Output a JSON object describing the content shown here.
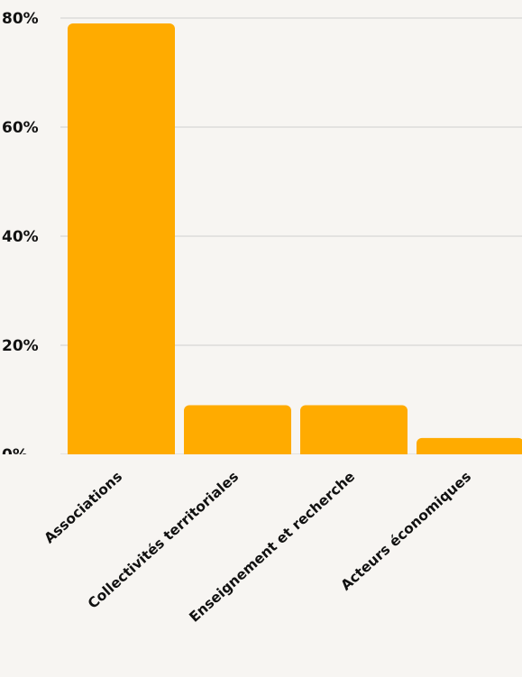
{
  "chart_data": {
    "type": "bar",
    "categories": [
      "Associations",
      "Collectivités territoriales",
      "Enseignement et recherche",
      "Acteurs économiques"
    ],
    "values": [
      79,
      9,
      9,
      3
    ],
    "unit": "%",
    "ylim": [
      0,
      80
    ],
    "yticks": [
      "0%",
      "20%",
      "40%",
      "60%",
      "80%"
    ],
    "title": "",
    "xlabel": "",
    "ylabel": "",
    "grid": true,
    "colors": {
      "bar": "#ffab00",
      "grid": "#cfcfcf",
      "background": "#f7f5f2",
      "text": "#111111"
    }
  }
}
